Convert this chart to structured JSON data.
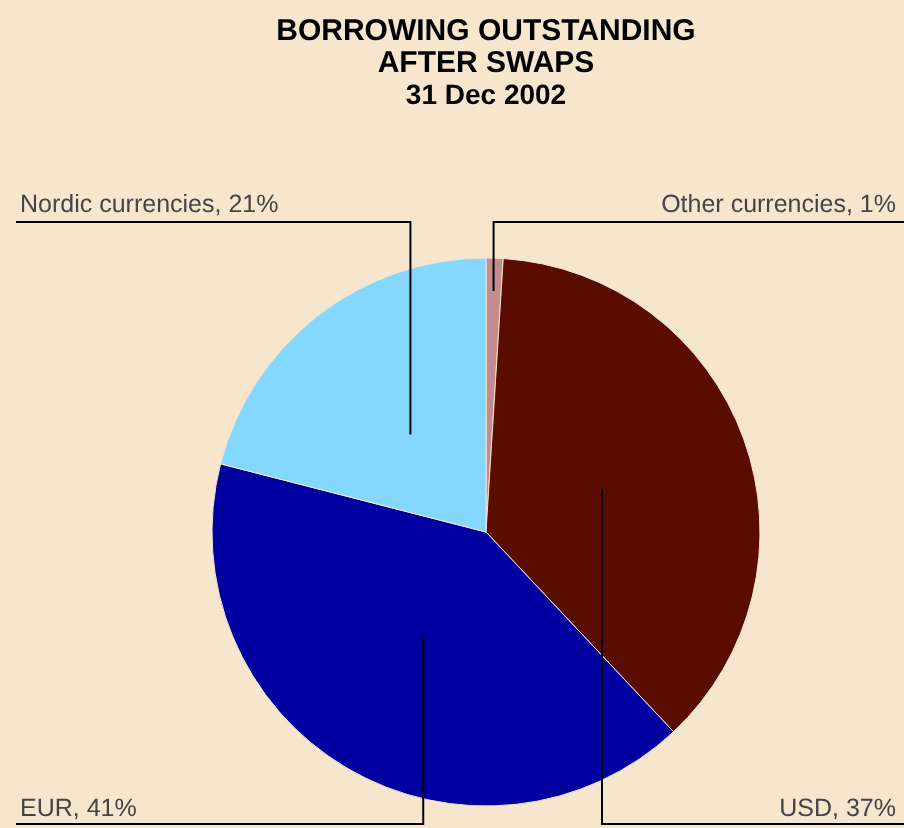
{
  "chart_data": {
    "type": "pie",
    "title": "BORROWING OUTSTANDING\nAFTER SWAPS",
    "subtitle": "31 Dec 2002",
    "categories": [
      "Other currencies",
      "USD",
      "EUR",
      "Nordic currencies"
    ],
    "values": [
      1,
      37,
      41,
      21
    ],
    "value_labels": [
      "1%",
      "37%",
      "41%",
      "21%"
    ],
    "colors": [
      "#c48c8c",
      "#5a0c00",
      "#0000a0",
      "#84d8ff"
    ]
  }
}
